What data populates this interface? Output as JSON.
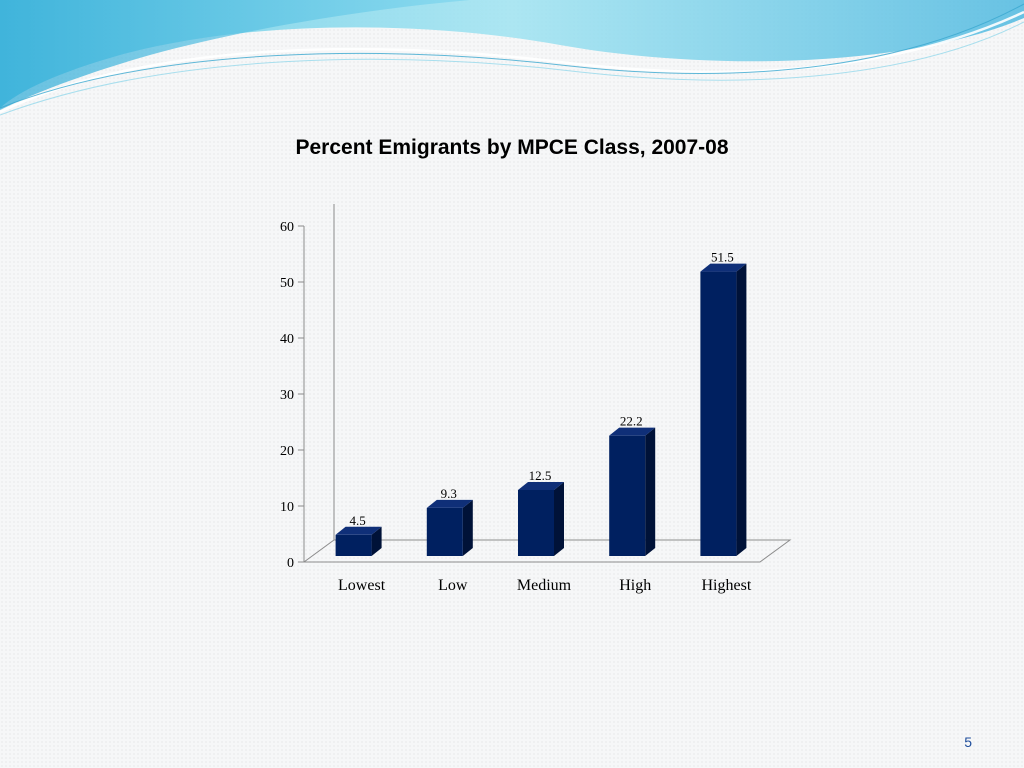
{
  "slide": {
    "number": "5"
  },
  "theme": {
    "bar_color": "#002060",
    "bar_side_color": "#001238",
    "bar_top_color": "#0f2f78",
    "wave_color": "#4dc8e6"
  },
  "chart_data": {
    "type": "bar",
    "title": "Percent Emigrants by MPCE Class, 2007-08",
    "xlabel": "",
    "ylabel": "",
    "categories": [
      "Lowest",
      "Low",
      "Medium",
      "High",
      "Highest"
    ],
    "values": [
      4.5,
      9.3,
      12.5,
      22.2,
      51.5
    ],
    "value_labels": [
      "4.5",
      "9.3",
      "12.5",
      "22.2",
      "51.5"
    ],
    "ylim": [
      0,
      60
    ],
    "yticks": [
      0,
      10,
      20,
      30,
      40,
      50,
      60
    ],
    "grid": false,
    "legend": "none",
    "style": "3d-column"
  }
}
